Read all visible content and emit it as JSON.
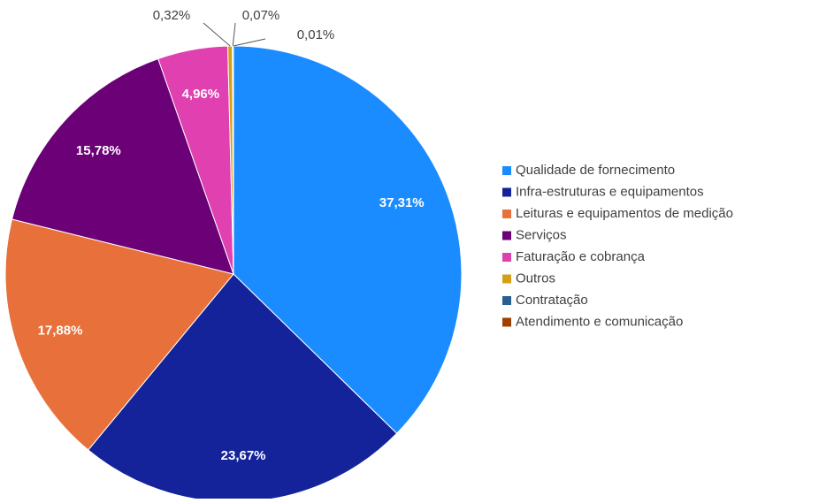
{
  "chart_data": {
    "type": "pie",
    "categories": [
      "Qualidade de fornecimento",
      "Infra-estruturas e equipamentos",
      "Leituras e equipamentos de medição",
      "Serviços",
      "Faturação e cobrança",
      "Outros",
      "Contratação",
      "Atendimento e comunicação"
    ],
    "values": [
      37.31,
      23.67,
      17.88,
      15.78,
      4.96,
      0.32,
      0.07,
      0.01
    ],
    "value_labels": [
      "37,31%",
      "23,67%",
      "17,88%",
      "15,78%",
      "4,96%",
      "0,32%",
      "0,07%",
      "0,01%"
    ],
    "colors": [
      "#1a8cff",
      "#14239a",
      "#e8703a",
      "#6b0077",
      "#e040b0",
      "#d4a017",
      "#2a5f8f",
      "#a04000"
    ],
    "legend": "right"
  }
}
